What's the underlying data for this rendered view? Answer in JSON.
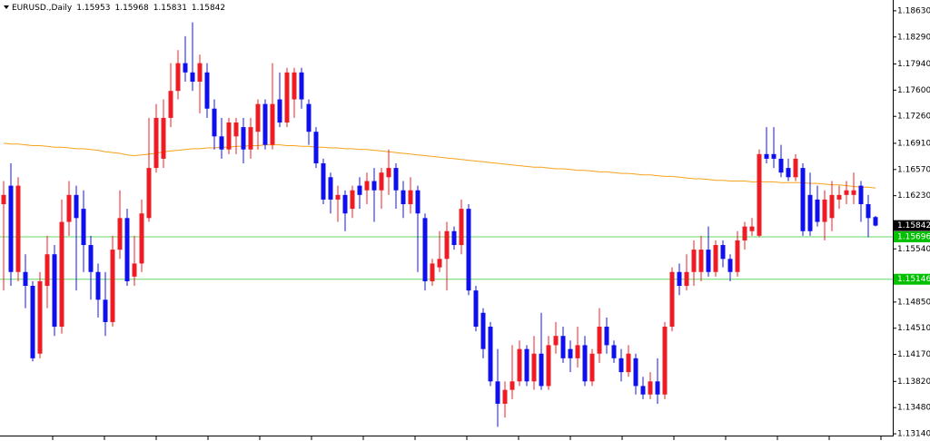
{
  "chart_data": {
    "type": "candlestick",
    "title": "EURUSD.,Daily",
    "up_color": "#ee1c24",
    "down_color": "#1010ee",
    "open": [
      1.1612,
      1.1636,
      1.1524,
      1.1524,
      1.1506,
      1.1418,
      1.1506,
      1.1547,
      1.1453,
      1.1589,
      1.1624,
      1.1606,
      1.1559,
      1.1524,
      1.1488,
      1.1459,
      1.1553,
      1.1594,
      1.1518,
      1.1535,
      1.1594,
      1.1659,
      1.1671,
      1.1724,
      1.1759,
      1.1795,
      1.1783,
      1.1771,
      1.1783,
      1.1736,
      1.17,
      1.1683,
      1.17,
      1.1712,
      1.1683,
      1.1706,
      1.1742,
      1.1689,
      1.1748,
      1.1718,
      1.1748,
      1.1783,
      1.1742,
      1.1706,
      1.1665,
      1.1647,
      1.1618,
      1.1624,
      1.1606,
      1.1636,
      1.163,
      1.1642,
      1.163,
      1.1647,
      1.1659,
      1.163,
      1.1612,
      1.163,
      1.1594,
      1.1512,
      1.153,
      1.1541,
      1.1577,
      1.1559,
      1.1606,
      1.15,
      1.1471,
      1.1453,
      1.1382,
      1.1353,
      1.1371,
      1.1382,
      1.1424,
      1.1382,
      1.1418,
      1.1376,
      1.1429,
      1.1441,
      1.1424,
      1.1412,
      1.1429,
      1.1382,
      1.1418,
      1.1453,
      1.1429,
      1.1412,
      1.1394,
      1.1412,
      1.1376,
      1.1365,
      1.1382,
      1.1365,
      1.1453,
      1.1524,
      1.1506,
      1.1524,
      1.1524,
      1.1553,
      1.1524,
      1.1559,
      1.1541,
      1.1524,
      1.1565,
      1.1577,
      1.1571,
      1.1677,
      1.1677,
      1.1671,
      1.1659,
      1.1647,
      1.1659,
      1.1624,
      1.1618,
      1.1589,
      1.1594,
      1.1618,
      1.1624,
      1.1624,
      1.1636,
      1.1612,
      1.15953
    ],
    "high": [
      1.1642,
      1.1665,
      1.1647,
      1.1547,
      1.1512,
      1.1524,
      1.1571,
      1.1559,
      1.1618,
      1.1642,
      1.1636,
      1.163,
      1.1571,
      1.1535,
      1.1524,
      1.1571,
      1.163,
      1.1606,
      1.1571,
      1.1618,
      1.1724,
      1.1742,
      1.1748,
      1.1795,
      1.1812,
      1.183,
      1.1848,
      1.1806,
      1.1795,
      1.1748,
      1.1724,
      1.1724,
      1.1724,
      1.1724,
      1.1724,
      1.1748,
      1.1748,
      1.1795,
      1.1783,
      1.1789,
      1.1789,
      1.1789,
      1.1748,
      1.1712,
      1.1671,
      1.1653,
      1.1636,
      1.163,
      1.1636,
      1.1647,
      1.1653,
      1.1659,
      1.1659,
      1.1683,
      1.1665,
      1.1642,
      1.1647,
      1.1636,
      1.16,
      1.1541,
      1.1577,
      1.1589,
      1.1583,
      1.1618,
      1.1612,
      1.1506,
      1.1477,
      1.1459,
      1.1424,
      1.1382,
      1.1429,
      1.1435,
      1.1429,
      1.1441,
      1.1471,
      1.1441,
      1.1459,
      1.1453,
      1.1435,
      1.1453,
      1.1441,
      1.1424,
      1.1477,
      1.1465,
      1.1435,
      1.1424,
      1.1429,
      1.1418,
      1.1388,
      1.1394,
      1.1412,
      1.1459,
      1.153,
      1.1535,
      1.1547,
      1.1565,
      1.1571,
      1.1583,
      1.1565,
      1.1565,
      1.1547,
      1.1577,
      1.1589,
      1.1594,
      1.1683,
      1.1712,
      1.1712,
      1.1689,
      1.1671,
      1.1677,
      1.1665,
      1.1653,
      1.1636,
      1.163,
      1.1642,
      1.1636,
      1.1642,
      1.1653,
      1.1642,
      1.1624,
      1.15968
    ],
    "low": [
      1.15,
      1.1506,
      1.1512,
      1.1477,
      1.1408,
      1.1412,
      1.1477,
      1.1441,
      1.1444,
      1.1571,
      1.15,
      1.1524,
      1.1488,
      1.1465,
      1.1441,
      1.1453,
      1.1541,
      1.1506,
      1.1506,
      1.1524,
      1.1589,
      1.1653,
      1.1659,
      1.1712,
      1.1748,
      1.1771,
      1.1759,
      1.173,
      1.1724,
      1.1683,
      1.1671,
      1.1677,
      1.1677,
      1.1665,
      1.1671,
      1.1683,
      1.1683,
      1.1683,
      1.1712,
      1.1712,
      1.1724,
      1.1736,
      1.1689,
      1.1659,
      1.1612,
      1.16,
      1.1589,
      1.1577,
      1.1594,
      1.1606,
      1.1612,
      1.1589,
      1.1606,
      1.1624,
      1.1606,
      1.1594,
      1.16,
      1.1524,
      1.15,
      1.1506,
      1.1524,
      1.15,
      1.1553,
      1.1547,
      1.1494,
      1.1447,
      1.1412,
      1.1376,
      1.1323,
      1.1335,
      1.1359,
      1.1376,
      1.1376,
      1.1371,
      1.1371,
      1.1371,
      1.1418,
      1.1406,
      1.1394,
      1.14,
      1.1376,
      1.1376,
      1.1406,
      1.1418,
      1.1406,
      1.1382,
      1.1388,
      1.1365,
      1.1359,
      1.1359,
      1.1353,
      1.1359,
      1.1447,
      1.1494,
      1.15,
      1.1506,
      1.1512,
      1.1518,
      1.1518,
      1.153,
      1.1512,
      1.1518,
      1.1553,
      1.1571,
      1.1569,
      1.1665,
      1.1659,
      1.1647,
      1.1642,
      1.1642,
      1.1571,
      1.1571,
      1.1583,
      1.1565,
      1.1577,
      1.1606,
      1.1612,
      1.1612,
      1.1589,
      1.1569,
      1.15831
    ],
    "close": [
      1.1624,
      1.1524,
      1.1636,
      1.1506,
      1.1412,
      1.1512,
      1.1547,
      1.1453,
      1.1589,
      1.1624,
      1.1594,
      1.1559,
      1.1524,
      1.1488,
      1.1459,
      1.1553,
      1.1594,
      1.1512,
      1.1535,
      1.16,
      1.1659,
      1.1724,
      1.1724,
      1.1759,
      1.1795,
      1.1783,
      1.1771,
      1.1795,
      1.1736,
      1.17,
      1.1683,
      1.1718,
      1.1718,
      1.1683,
      1.1712,
      1.1742,
      1.1689,
      1.1742,
      1.1718,
      1.1783,
      1.1783,
      1.1748,
      1.1706,
      1.1665,
      1.1618,
      1.1618,
      1.1624,
      1.16,
      1.163,
      1.1624,
      1.1642,
      1.163,
      1.1653,
      1.1659,
      1.163,
      1.1612,
      1.163,
      1.16,
      1.1512,
      1.1535,
      1.1541,
      1.1577,
      1.1559,
      1.1606,
      1.15,
      1.1453,
      1.1424,
      1.1382,
      1.1353,
      1.1371,
      1.1382,
      1.1424,
      1.1382,
      1.1418,
      1.1376,
      1.1429,
      1.1441,
      1.1412,
      1.1412,
      1.1429,
      1.1382,
      1.1418,
      1.1453,
      1.1429,
      1.1412,
      1.1394,
      1.1418,
      1.1376,
      1.1365,
      1.1382,
      1.1365,
      1.1453,
      1.1524,
      1.1506,
      1.1524,
      1.1553,
      1.1553,
      1.1524,
      1.1559,
      1.1541,
      1.1524,
      1.1565,
      1.1583,
      1.1583,
      1.1677,
      1.1671,
      1.1671,
      1.1653,
      1.1647,
      1.1671,
      1.1577,
      1.1577,
      1.1589,
      1.1618,
      1.1624,
      1.1624,
      1.163,
      1.163,
      1.1612,
      1.1594,
      1.15842
    ],
    "ma": {
      "color": "#f7a21b",
      "values": [
        1.1691,
        1.169,
        1.169,
        1.1689,
        1.1688,
        1.1688,
        1.1687,
        1.1686,
        1.1686,
        1.1685,
        1.1684,
        1.1684,
        1.1683,
        1.1682,
        1.168,
        1.1679,
        1.1678,
        1.1676,
        1.1675,
        1.1676,
        1.1677,
        1.1678,
        1.168,
        1.1681,
        1.1682,
        1.1683,
        1.1684,
        1.1684,
        1.1685,
        1.1685,
        1.1686,
        1.1686,
        1.1687,
        1.1687,
        1.1688,
        1.1688,
        1.1689,
        1.1689,
        1.1689,
        1.1688,
        1.1688,
        1.1687,
        1.1687,
        1.1686,
        1.1686,
        1.1685,
        1.1685,
        1.1684,
        1.1684,
        1.1683,
        1.1683,
        1.1682,
        1.1681,
        1.168,
        1.1679,
        1.1678,
        1.1677,
        1.1676,
        1.1675,
        1.1674,
        1.1673,
        1.1672,
        1.1671,
        1.167,
        1.1669,
        1.1668,
        1.1667,
        1.1666,
        1.1665,
        1.1664,
        1.1663,
        1.1662,
        1.1661,
        1.166,
        1.166,
        1.1659,
        1.1658,
        1.1658,
        1.1657,
        1.1656,
        1.1656,
        1.1655,
        1.1654,
        1.1654,
        1.1653,
        1.1652,
        1.1652,
        1.1651,
        1.165,
        1.165,
        1.1649,
        1.1648,
        1.1648,
        1.1647,
        1.1646,
        1.1645,
        1.1645,
        1.1644,
        1.1643,
        1.1643,
        1.1642,
        1.1642,
        1.1642,
        1.1641,
        1.1641,
        1.1641,
        1.1641,
        1.164,
        1.164,
        1.164,
        1.164,
        1.1639,
        1.1639,
        1.1638,
        1.1637,
        1.1637,
        1.1636,
        1.1635,
        1.1634,
        1.1634,
        1.1633
      ]
    },
    "levels": [
      {
        "value": 1.15696,
        "color": "#00c000"
      },
      {
        "value": 1.15146,
        "color": "#00c000"
      }
    ],
    "ylim": [
      1.1307,
      1.1877
    ],
    "yticks": [
      {
        "value": 1.1863,
        "label": "1.18630"
      },
      {
        "value": 1.1829,
        "label": "1.18290"
      },
      {
        "value": 1.1794,
        "label": "1.17940"
      },
      {
        "value": 1.176,
        "label": "1.17600"
      },
      {
        "value": 1.1726,
        "label": "1.17260"
      },
      {
        "value": 1.1691,
        "label": "1.16910"
      },
      {
        "value": 1.1657,
        "label": "1.16570"
      },
      {
        "value": 1.1623,
        "label": "1.16230"
      },
      {
        "value": 1.1554,
        "label": "1.15540"
      },
      {
        "value": 1.1485,
        "label": "1.14850"
      },
      {
        "value": 1.1451,
        "label": "1.14510"
      },
      {
        "value": 1.1417,
        "label": "1.14170"
      },
      {
        "value": 1.1382,
        "label": "1.13820"
      },
      {
        "value": 1.1348,
        "label": "1.13480"
      },
      {
        "value": 1.1314,
        "label": "1.13140"
      }
    ]
  }
}
